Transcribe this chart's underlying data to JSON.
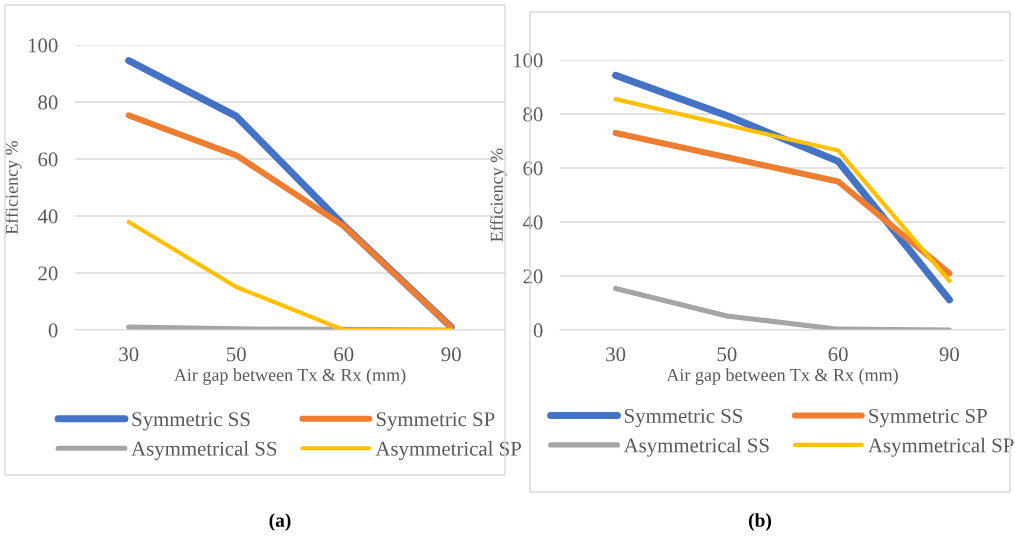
{
  "chart_data": [
    {
      "type": "line",
      "xlabel": "Air gap between Tx & Rx (mm)",
      "ylabel": "Efficiency %",
      "categories": [
        "30",
        "50",
        "60",
        "90"
      ],
      "ylim": [
        0,
        100
      ],
      "yticks": [
        0,
        20,
        40,
        60,
        80,
        100
      ],
      "grid": "y",
      "legend": "bottom",
      "marker": "none",
      "line_style": "solid",
      "annotations": [
        "(a)"
      ],
      "series": [
        {
          "name": "Symmetric SS",
          "color": "#4472c4",
          "values": [
            94.5,
            75,
            36.7,
            1
          ]
        },
        {
          "name": "Symmetric SP",
          "color": "#ed7d31",
          "values": [
            75.3,
            61.3,
            36.5,
            1
          ]
        },
        {
          "name": "Asymmetrical SS",
          "color": "#a5a5a5",
          "values": [
            1,
            0.4,
            0.2,
            0
          ]
        },
        {
          "name": "Asymmetrical SP",
          "color": "#ffc000",
          "values": [
            37.9,
            15.1,
            0,
            0
          ]
        }
      ]
    },
    {
      "type": "line",
      "xlabel": "Air gap between Tx & Rx (mm)",
      "ylabel": "Efficiency %",
      "categories": [
        "30",
        "50",
        "60",
        "90"
      ],
      "ylim": [
        0,
        100
      ],
      "yticks": [
        0,
        20,
        40,
        60,
        80,
        100
      ],
      "grid": "y",
      "legend": "bottom",
      "marker": "none",
      "line_style": "solid",
      "annotations": [
        "(b)"
      ],
      "series": [
        {
          "name": "Symmetric SS",
          "color": "#4472c4",
          "values": [
            94.3,
            79.4,
            62.5,
            11.2
          ]
        },
        {
          "name": "Symmetric SP",
          "color": "#ed7d31",
          "values": [
            73,
            64,
            55,
            21
          ]
        },
        {
          "name": "Asymmetrical SS",
          "color": "#a5a5a5",
          "values": [
            15.4,
            5.2,
            0.3,
            0
          ]
        },
        {
          "name": "Asymmetrical SP",
          "color": "#ffc000",
          "values": [
            85.5,
            75.9,
            66.5,
            18.2
          ]
        }
      ]
    }
  ]
}
